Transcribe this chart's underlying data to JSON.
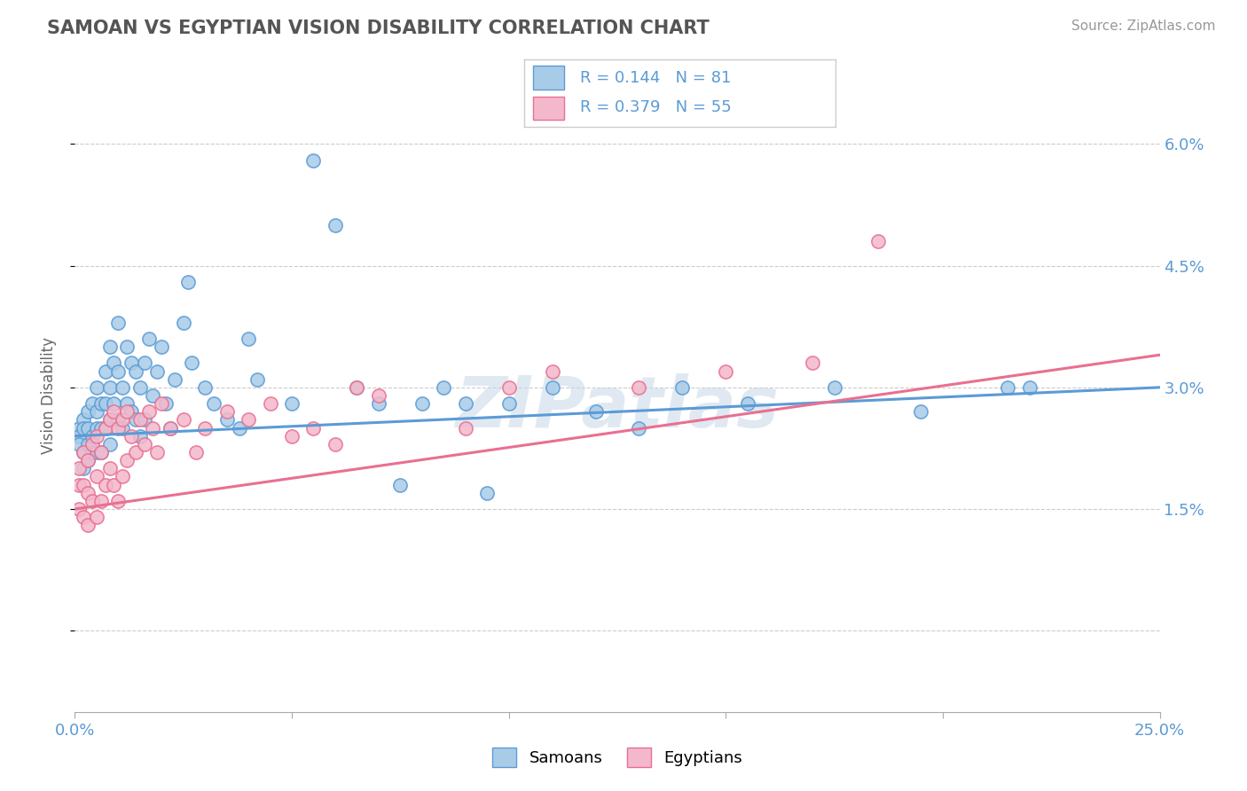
{
  "title": "SAMOAN VS EGYPTIAN VISION DISABILITY CORRELATION CHART",
  "source": "Source: ZipAtlas.com",
  "ylabel": "Vision Disability",
  "xlim": [
    0.0,
    0.25
  ],
  "ylim": [
    -0.01,
    0.068
  ],
  "ytick_positions": [
    0.0,
    0.015,
    0.03,
    0.045,
    0.06
  ],
  "ytick_labels": [
    "",
    "1.5%",
    "3.0%",
    "4.5%",
    "6.0%"
  ],
  "xtick_positions": [
    0.0,
    0.05,
    0.1,
    0.15,
    0.2,
    0.25
  ],
  "xtick_labels": [
    "0.0%",
    "",
    "",
    "",
    "",
    "25.0%"
  ],
  "blue_color": "#a8cce8",
  "blue_edge": "#5b9bd5",
  "pink_color": "#f4b8cc",
  "pink_edge": "#e87090",
  "line_blue": "#5b9bd5",
  "line_pink": "#e87090",
  "watermark": "ZIPatlas",
  "legend_r1_text": "R = 0.144   N = 81",
  "legend_r2_text": "R = 0.379   N = 55",
  "legend_color": "#5b9bd5",
  "samoan_label": "Samoans",
  "egyptian_label": "Egyptians",
  "blue_line_start_y": 0.024,
  "blue_line_end_y": 0.03,
  "pink_line_start_y": 0.015,
  "pink_line_end_y": 0.034,
  "samoan_x": [
    0.001,
    0.001,
    0.001,
    0.002,
    0.002,
    0.002,
    0.002,
    0.003,
    0.003,
    0.003,
    0.003,
    0.004,
    0.004,
    0.004,
    0.005,
    0.005,
    0.005,
    0.005,
    0.006,
    0.006,
    0.006,
    0.007,
    0.007,
    0.007,
    0.008,
    0.008,
    0.008,
    0.008,
    0.009,
    0.009,
    0.01,
    0.01,
    0.01,
    0.011,
    0.011,
    0.012,
    0.012,
    0.013,
    0.013,
    0.014,
    0.014,
    0.015,
    0.015,
    0.016,
    0.016,
    0.017,
    0.018,
    0.019,
    0.02,
    0.021,
    0.022,
    0.023,
    0.025,
    0.026,
    0.027,
    0.03,
    0.032,
    0.035,
    0.038,
    0.04,
    0.042,
    0.05,
    0.055,
    0.06,
    0.065,
    0.07,
    0.075,
    0.08,
    0.085,
    0.09,
    0.095,
    0.1,
    0.11,
    0.12,
    0.13,
    0.14,
    0.155,
    0.175,
    0.195,
    0.215,
    0.22
  ],
  "samoan_y": [
    0.025,
    0.024,
    0.023,
    0.026,
    0.025,
    0.022,
    0.02,
    0.027,
    0.025,
    0.023,
    0.021,
    0.028,
    0.024,
    0.022,
    0.03,
    0.027,
    0.025,
    0.022,
    0.028,
    0.025,
    0.022,
    0.032,
    0.028,
    0.025,
    0.035,
    0.03,
    0.026,
    0.023,
    0.033,
    0.028,
    0.038,
    0.032,
    0.026,
    0.03,
    0.025,
    0.035,
    0.028,
    0.033,
    0.027,
    0.032,
    0.026,
    0.03,
    0.024,
    0.033,
    0.026,
    0.036,
    0.029,
    0.032,
    0.035,
    0.028,
    0.025,
    0.031,
    0.038,
    0.043,
    0.033,
    0.03,
    0.028,
    0.026,
    0.025,
    0.036,
    0.031,
    0.028,
    0.058,
    0.05,
    0.03,
    0.028,
    0.018,
    0.028,
    0.03,
    0.028,
    0.017,
    0.028,
    0.03,
    0.027,
    0.025,
    0.03,
    0.028,
    0.03,
    0.027,
    0.03,
    0.03
  ],
  "egyptian_x": [
    0.001,
    0.001,
    0.001,
    0.002,
    0.002,
    0.002,
    0.003,
    0.003,
    0.003,
    0.004,
    0.004,
    0.005,
    0.005,
    0.005,
    0.006,
    0.006,
    0.007,
    0.007,
    0.008,
    0.008,
    0.009,
    0.009,
    0.01,
    0.01,
    0.011,
    0.011,
    0.012,
    0.012,
    0.013,
    0.014,
    0.015,
    0.016,
    0.017,
    0.018,
    0.019,
    0.02,
    0.022,
    0.025,
    0.028,
    0.03,
    0.035,
    0.04,
    0.045,
    0.05,
    0.055,
    0.06,
    0.065,
    0.07,
    0.09,
    0.1,
    0.11,
    0.13,
    0.15,
    0.17,
    0.185
  ],
  "egyptian_y": [
    0.02,
    0.018,
    0.015,
    0.022,
    0.018,
    0.014,
    0.021,
    0.017,
    0.013,
    0.023,
    0.016,
    0.024,
    0.019,
    0.014,
    0.022,
    0.016,
    0.025,
    0.018,
    0.026,
    0.02,
    0.027,
    0.018,
    0.025,
    0.016,
    0.026,
    0.019,
    0.027,
    0.021,
    0.024,
    0.022,
    0.026,
    0.023,
    0.027,
    0.025,
    0.022,
    0.028,
    0.025,
    0.026,
    0.022,
    0.025,
    0.027,
    0.026,
    0.028,
    0.024,
    0.025,
    0.023,
    0.03,
    0.029,
    0.025,
    0.03,
    0.032,
    0.03,
    0.032,
    0.033,
    0.048
  ]
}
